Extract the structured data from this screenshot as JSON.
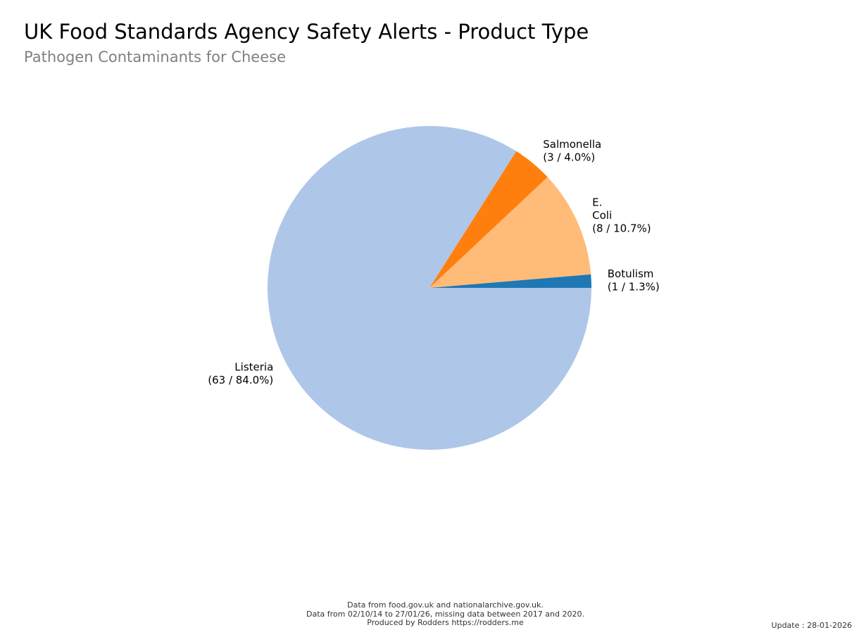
{
  "chart_data": {
    "type": "pie",
    "title": "UK Food Standards Agency Safety Alerts - Product Type",
    "subtitle": "Pathogen Contaminants for Cheese",
    "slices": [
      {
        "label": "Botulism",
        "value": 1,
        "percent": "1.3%",
        "color": "#1f77b4",
        "label_lines": [
          "Botulism",
          "(1 / 1.3%)"
        ]
      },
      {
        "label": "E. Coli",
        "value": 8,
        "percent": "10.7%",
        "color": "#ffbb78",
        "label_lines": [
          "E.",
          "Coli",
          "(8 / 10.7%)"
        ]
      },
      {
        "label": "Salmonella",
        "value": 3,
        "percent": "4.0%",
        "color": "#ff7f0e",
        "label_lines": [
          "Salmonella",
          "(3 / 4.0%)"
        ]
      },
      {
        "label": "Listeria",
        "value": 63,
        "percent": "84.0%",
        "color": "#aec7e8",
        "label_lines": [
          "Listeria",
          "(63 / 84.0%)"
        ]
      }
    ]
  },
  "footer": {
    "line1": "Data from food.gov.uk and nationalarchive.gov.uk.",
    "line2": "Data from 02/10/14 to 27/01/26, missing data between 2017 and 2020.",
    "line3": "Produced by Rodders https://rodders.me"
  },
  "update": "Update : 28-01-2026"
}
